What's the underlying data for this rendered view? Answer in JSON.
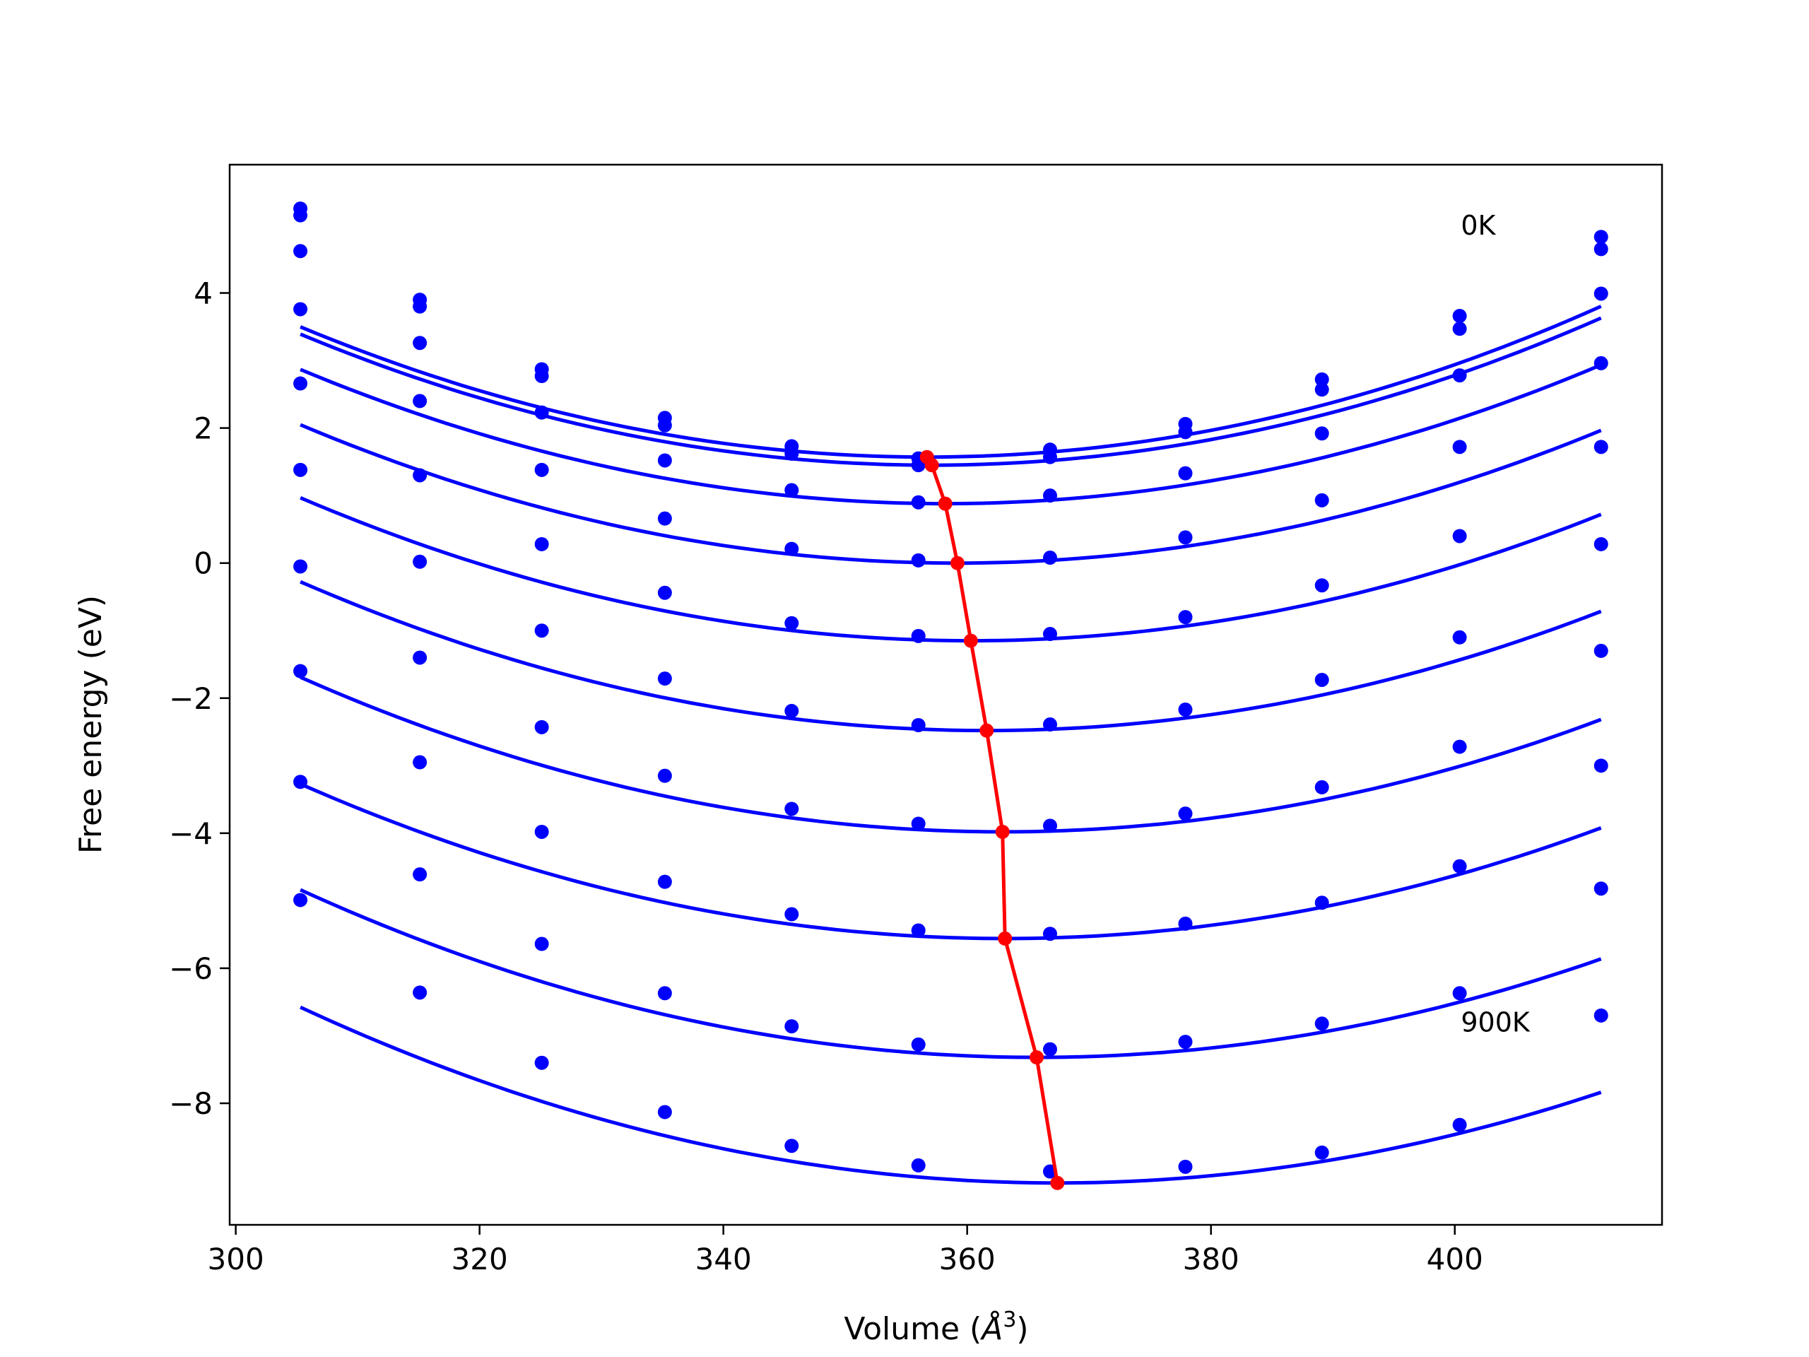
{
  "chart_data": {
    "type": "scatter",
    "title": "",
    "xlabel": "Volume (Å³)",
    "xlabel_parts": {
      "prefix": "Volume (",
      "symbol": "Å",
      "exponent": "3",
      "suffix": ")"
    },
    "ylabel": "Free energy (eV)",
    "xlim": [
      299.5,
      417
    ],
    "ylim": [
      -9.8,
      5.9
    ],
    "xticks": [
      300,
      320,
      340,
      360,
      380,
      400
    ],
    "xtick_labels": [
      "300",
      "320",
      "340",
      "360",
      "380",
      "400"
    ],
    "yticks": [
      -8,
      -6,
      -4,
      -2,
      0,
      2,
      4
    ],
    "ytick_labels": [
      "−8",
      "−6",
      "−4",
      "−2",
      "0",
      "2",
      "4"
    ],
    "grid": false,
    "legend": null,
    "colors": {
      "points": "#0000ff",
      "fits": "#0000ff",
      "minima": "#ff0000"
    },
    "x": [
      305.3,
      315.1,
      325.1,
      335.2,
      345.6,
      356.0,
      366.8,
      377.9,
      389.1,
      400.4,
      412.0
    ],
    "series": [
      {
        "values": [
          5.25,
          3.9,
          2.87,
          2.15,
          1.73,
          1.55,
          1.68,
          2.06,
          2.72,
          3.66,
          4.83
        ],
        "fit": {
          "a": 0.00073,
          "vmin": 356.7,
          "fmin": 1.57
        }
      },
      {
        "values": [
          5.15,
          3.8,
          2.77,
          2.04,
          1.62,
          1.45,
          1.57,
          1.94,
          2.57,
          3.47,
          4.65
        ],
        "fit": {
          "a": 0.000723,
          "vmin": 357.1,
          "fmin": 1.45
        }
      },
      {
        "values": [
          4.62,
          3.26,
          2.23,
          1.52,
          1.08,
          0.9,
          1.0,
          1.33,
          1.92,
          2.78,
          3.99
        ],
        "fit": {
          "a": 0.00071,
          "vmin": 358.2,
          "fmin": 0.88
        }
      },
      {
        "values": [
          3.76,
          2.4,
          1.38,
          0.66,
          0.21,
          0.04,
          0.08,
          0.38,
          0.93,
          1.72,
          2.96
        ],
        "fit": {
          "a": 0.000705,
          "vmin": 359.2,
          "fmin": 0.0
        }
      },
      {
        "values": [
          2.66,
          1.3,
          0.28,
          -0.44,
          -0.89,
          -1.08,
          -1.05,
          -0.8,
          -0.33,
          0.4,
          1.72
        ],
        "fit": {
          "a": 0.0007,
          "vmin": 360.3,
          "fmin": -1.15
        }
      },
      {
        "values": [
          1.38,
          0.02,
          -1.0,
          -1.71,
          -2.19,
          -2.4,
          -2.39,
          -2.17,
          -1.73,
          -1.1,
          0.28
        ],
        "fit": {
          "a": 0.000695,
          "vmin": 361.6,
          "fmin": -2.48
        }
      },
      {
        "values": [
          -0.05,
          -1.4,
          -2.43,
          -3.15,
          -3.64,
          -3.86,
          -3.89,
          -3.71,
          -3.32,
          -2.72,
          -1.3
        ],
        "fit": {
          "a": 0.00069,
          "vmin": 362.9,
          "fmin": -3.98
        }
      },
      {
        "values": [
          -1.6,
          -2.95,
          -3.98,
          -4.72,
          -5.2,
          -5.44,
          -5.49,
          -5.34,
          -5.03,
          -4.49,
          -3.0
        ],
        "fit": {
          "a": 0.000685,
          "vmin": 363.1,
          "fmin": -5.56
        }
      },
      {
        "values": [
          -3.24,
          -4.61,
          -5.64,
          -6.37,
          -6.86,
          -7.13,
          -7.2,
          -7.09,
          -6.82,
          -6.37,
          -4.82
        ],
        "fit": {
          "a": 0.00068,
          "vmin": 365.7,
          "fmin": -7.32
        }
      },
      {
        "values": [
          -4.99,
          -6.36,
          -7.4,
          -8.13,
          -8.63,
          -8.92,
          -9.01,
          -8.94,
          -8.73,
          -8.32,
          -6.7
        ],
        "fit": {
          "a": 0.000675,
          "vmin": 367.4,
          "fmin": -9.18
        }
      }
    ],
    "minima_path": {
      "x": [
        356.7,
        357.1,
        358.2,
        359.2,
        360.3,
        361.6,
        362.9,
        363.1,
        365.7,
        367.4
      ],
      "y": [
        1.57,
        1.45,
        0.88,
        0.0,
        -1.15,
        -2.48,
        -3.98,
        -5.56,
        -7.32,
        -9.18
      ]
    },
    "annotations": [
      {
        "text": "0K",
        "x": 400.5,
        "y": 5.0
      },
      {
        "text": "900K",
        "x": 400.5,
        "y": -6.8
      }
    ]
  }
}
